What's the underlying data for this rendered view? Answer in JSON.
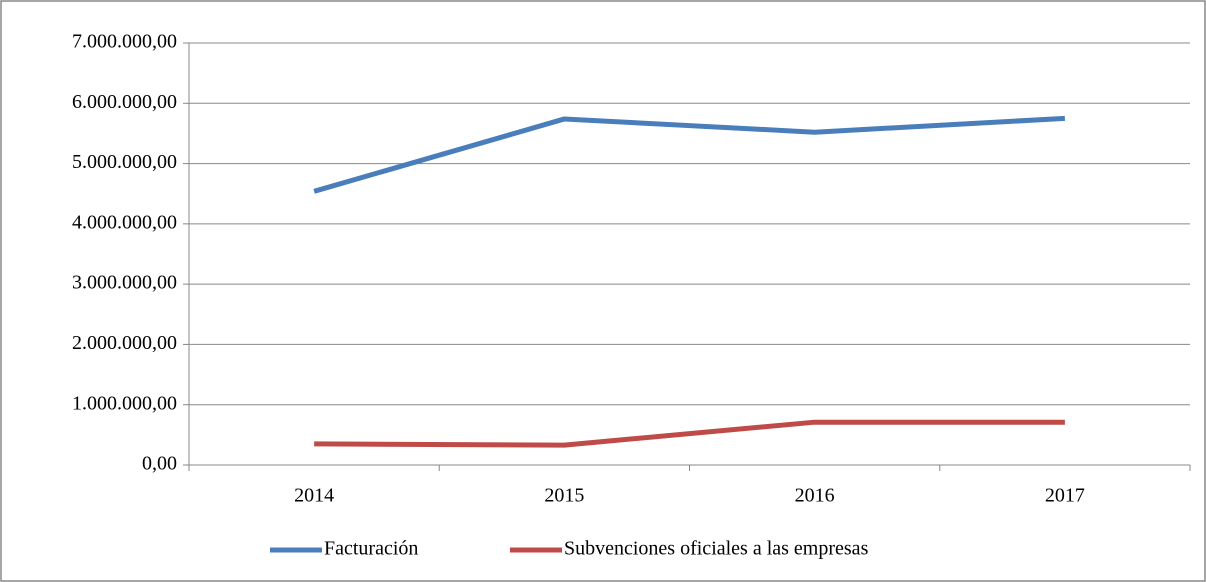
{
  "chart_data": {
    "type": "line",
    "categories": [
      "2014",
      "2015",
      "2016",
      "2017"
    ],
    "series": [
      {
        "name": "Facturación",
        "color": "#4a7ebb",
        "values": [
          4540000,
          5740000,
          5520000,
          5750000
        ]
      },
      {
        "name": "Subvenciones oficiales a las empresas",
        "color": "#be4b48",
        "values": [
          350000,
          330000,
          710000,
          710000
        ]
      }
    ],
    "ylim": [
      0,
      7000000
    ],
    "yticks": [
      {
        "value": 0,
        "label": "0,00"
      },
      {
        "value": 1000000,
        "label": "1.000.000,00"
      },
      {
        "value": 2000000,
        "label": "2.000.000,00"
      },
      {
        "value": 3000000,
        "label": "3.000.000,00"
      },
      {
        "value": 4000000,
        "label": "4.000.000,00"
      },
      {
        "value": 5000000,
        "label": "5.000.000,00"
      },
      {
        "value": 6000000,
        "label": "6.000.000,00"
      },
      {
        "value": 7000000,
        "label": "7.000.000,00"
      }
    ],
    "grid": true,
    "legend": "bottom"
  }
}
